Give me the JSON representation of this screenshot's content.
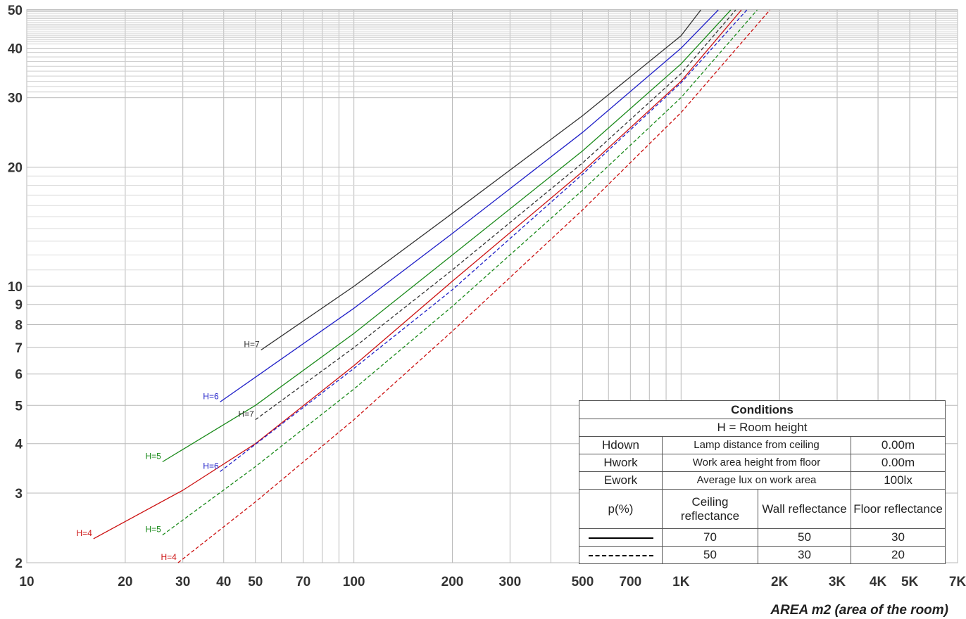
{
  "chart_data": {
    "type": "line",
    "title": "",
    "xlabel": "AREA m2 (area of the room)",
    "ylabel": "",
    "xscale": "log",
    "yscale": "log",
    "xlim": [
      10,
      7000
    ],
    "ylim": [
      2,
      50
    ],
    "grid": true,
    "x_ticks": [
      {
        "value": 10,
        "label": "10"
      },
      {
        "value": 20,
        "label": "20"
      },
      {
        "value": 30,
        "label": "30"
      },
      {
        "value": 40,
        "label": "40"
      },
      {
        "value": 50,
        "label": "50"
      },
      {
        "value": 70,
        "label": "70"
      },
      {
        "value": 100,
        "label": "100"
      },
      {
        "value": 200,
        "label": "200"
      },
      {
        "value": 300,
        "label": "300"
      },
      {
        "value": 500,
        "label": "500"
      },
      {
        "value": 700,
        "label": "700"
      },
      {
        "value": 1000,
        "label": "1K"
      },
      {
        "value": 2000,
        "label": "2K"
      },
      {
        "value": 3000,
        "label": "3K"
      },
      {
        "value": 4000,
        "label": "4K"
      },
      {
        "value": 5000,
        "label": "5K"
      },
      {
        "value": 7000,
        "label": "7K"
      }
    ],
    "y_ticks": [
      {
        "value": 2,
        "label": "2"
      },
      {
        "value": 3,
        "label": "3"
      },
      {
        "value": 4,
        "label": "4"
      },
      {
        "value": 5,
        "label": "5"
      },
      {
        "value": 6,
        "label": "6"
      },
      {
        "value": 7,
        "label": "7"
      },
      {
        "value": 8,
        "label": "8"
      },
      {
        "value": 9,
        "label": "9"
      },
      {
        "value": 10,
        "label": "10"
      },
      {
        "value": 20,
        "label": "20"
      },
      {
        "value": 30,
        "label": "30"
      },
      {
        "value": 40,
        "label": "40"
      },
      {
        "value": 50,
        "label": "50"
      }
    ],
    "series": [
      {
        "name": "H=7",
        "color": "#333333",
        "style": "solid",
        "points": [
          [
            52,
            6.9
          ],
          [
            100,
            10.0
          ],
          [
            200,
            15.3
          ],
          [
            500,
            27.0
          ],
          [
            1000,
            43.0
          ],
          [
            1150,
            50.0
          ]
        ]
      },
      {
        "name": "H=6",
        "color": "#1f1fc8",
        "style": "solid",
        "points": [
          [
            39,
            5.1
          ],
          [
            100,
            8.8
          ],
          [
            200,
            13.6
          ],
          [
            500,
            24.5
          ],
          [
            1000,
            40.0
          ],
          [
            1300,
            50.0
          ]
        ]
      },
      {
        "name": "H=5",
        "color": "#1a8a1a",
        "style": "solid",
        "points": [
          [
            26,
            3.6
          ],
          [
            50,
            5.0
          ],
          [
            100,
            7.6
          ],
          [
            200,
            12.0
          ],
          [
            500,
            22.0
          ],
          [
            1000,
            36.5
          ],
          [
            1420,
            50.0
          ]
        ]
      },
      {
        "name": "H=4",
        "color": "#cc1111",
        "style": "solid",
        "points": [
          [
            16,
            2.3
          ],
          [
            30,
            3.05
          ],
          [
            50,
            4.0
          ],
          [
            100,
            6.3
          ],
          [
            200,
            10.3
          ],
          [
            500,
            19.5
          ],
          [
            1000,
            33.0
          ],
          [
            1530,
            50.0
          ]
        ]
      },
      {
        "name": "H=7",
        "color": "#333333",
        "style": "dashed",
        "points": [
          [
            50,
            4.6
          ],
          [
            100,
            7.0
          ],
          [
            200,
            11.0
          ],
          [
            500,
            20.5
          ],
          [
            1000,
            34.5
          ],
          [
            1470,
            50.0
          ]
        ]
      },
      {
        "name": "H=6",
        "color": "#1f1fc8",
        "style": "dashed",
        "points": [
          [
            39,
            3.4
          ],
          [
            100,
            6.2
          ],
          [
            200,
            9.8
          ],
          [
            500,
            19.2
          ],
          [
            1000,
            32.7
          ],
          [
            1590,
            50.0
          ]
        ]
      },
      {
        "name": "H=5",
        "color": "#1a8a1a",
        "style": "dashed",
        "points": [
          [
            26,
            2.35
          ],
          [
            50,
            3.5
          ],
          [
            100,
            5.5
          ],
          [
            200,
            8.9
          ],
          [
            500,
            17.5
          ],
          [
            1000,
            30.0
          ],
          [
            1710,
            50.0
          ]
        ]
      },
      {
        "name": "H=4",
        "color": "#cc1111",
        "style": "dashed",
        "points": [
          [
            29,
            2.0
          ],
          [
            50,
            2.85
          ],
          [
            100,
            4.6
          ],
          [
            200,
            7.7
          ],
          [
            500,
            15.6
          ],
          [
            1000,
            27.5
          ],
          [
            1870,
            50.0
          ]
        ]
      }
    ]
  },
  "conditions": {
    "title": "Conditions",
    "subtitle": "H = Room height",
    "rows": [
      {
        "key": "Hdown",
        "desc": "Lamp distance from ceiling",
        "value": "0.00m"
      },
      {
        "key": "Hwork",
        "desc": "Work area height from floor",
        "value": "0.00m"
      },
      {
        "key": "Ework",
        "desc": "Average lux on work area",
        "value": "100lx"
      }
    ],
    "reflect_header": {
      "p": "p(%)",
      "ceiling": "Ceiling reflectance",
      "wall": "Wall reflectance",
      "floor": "Floor reflectance"
    },
    "solid": {
      "ceiling": "70",
      "wall": "50",
      "floor": "30"
    },
    "dashed": {
      "ceiling": "50",
      "wall": "30",
      "floor": "20"
    }
  }
}
